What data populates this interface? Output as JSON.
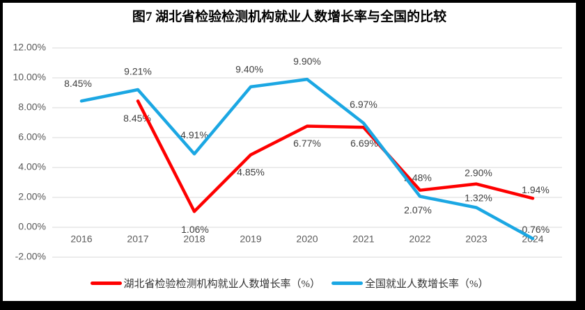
{
  "title": "图7 湖北省检验检测机构就业人数增长率与全国的比较",
  "chart_data": {
    "type": "line",
    "title": "图7 湖北省检验检测机构就业人数增长率与全国的比较",
    "categories": [
      "2016",
      "2017",
      "2018",
      "2019",
      "2020",
      "2021",
      "2022",
      "2023",
      "2024"
    ],
    "series": [
      {
        "name": "湖北省检验检测机构就业人数增长率（%）",
        "color": "#FE0000",
        "values": [
          null,
          8.45,
          1.06,
          4.85,
          6.77,
          6.69,
          2.48,
          2.9,
          1.94
        ],
        "data_labels": [
          "",
          "8.45%",
          "1.06%",
          "4.85%",
          "6.77%",
          "6.69%",
          "2.48%",
          "2.90%",
          "1.94%"
        ],
        "label_offsets": [
          null,
          [
            -1,
            26
          ],
          [
            1,
            27
          ],
          [
            0,
            26
          ],
          [
            0,
            26
          ],
          [
            1,
            24
          ],
          [
            -3,
            -17
          ],
          [
            3,
            -15
          ],
          [
            4,
            -11
          ]
        ]
      },
      {
        "name": "全国就业人数增长率（%）",
        "color": "#1BA7E3",
        "values": [
          8.45,
          9.21,
          4.91,
          9.4,
          9.9,
          6.97,
          2.07,
          1.32,
          -0.76
        ],
        "data_labels": [
          "8.45%",
          "9.21%",
          "4.91%",
          "9.40%",
          "9.90%",
          "6.97%",
          "2.07%",
          "1.32%",
          "-0.76%"
        ],
        "label_offsets": [
          [
            -5,
            -24
          ],
          [
            0,
            -25
          ],
          [
            0,
            -26
          ],
          [
            -2,
            -24
          ],
          [
            0,
            -25
          ],
          [
            0,
            -26
          ],
          [
            -3,
            21
          ],
          [
            3,
            -13
          ],
          [
            2,
            -12
          ]
        ]
      }
    ],
    "ylim": [
      -2,
      12
    ],
    "ytick_step": 2,
    "ytick_labels": [
      "12.00%",
      "10.00%",
      "8.00%",
      "6.00%",
      "4.00%",
      "2.00%",
      "0.00%",
      "-2.00%"
    ],
    "grid": "horizontal",
    "gridline_color": "#D9D9D9",
    "axis_label_color": "#595959",
    "data_label_color": "#404040",
    "legend_position": "bottom"
  },
  "legend": {
    "items": [
      {
        "label": "湖北省检验检测机构就业人数增长率（%）",
        "color": "#FE0000"
      },
      {
        "label": "全国就业人数增长率（%）",
        "color": "#1BA7E3"
      }
    ]
  }
}
